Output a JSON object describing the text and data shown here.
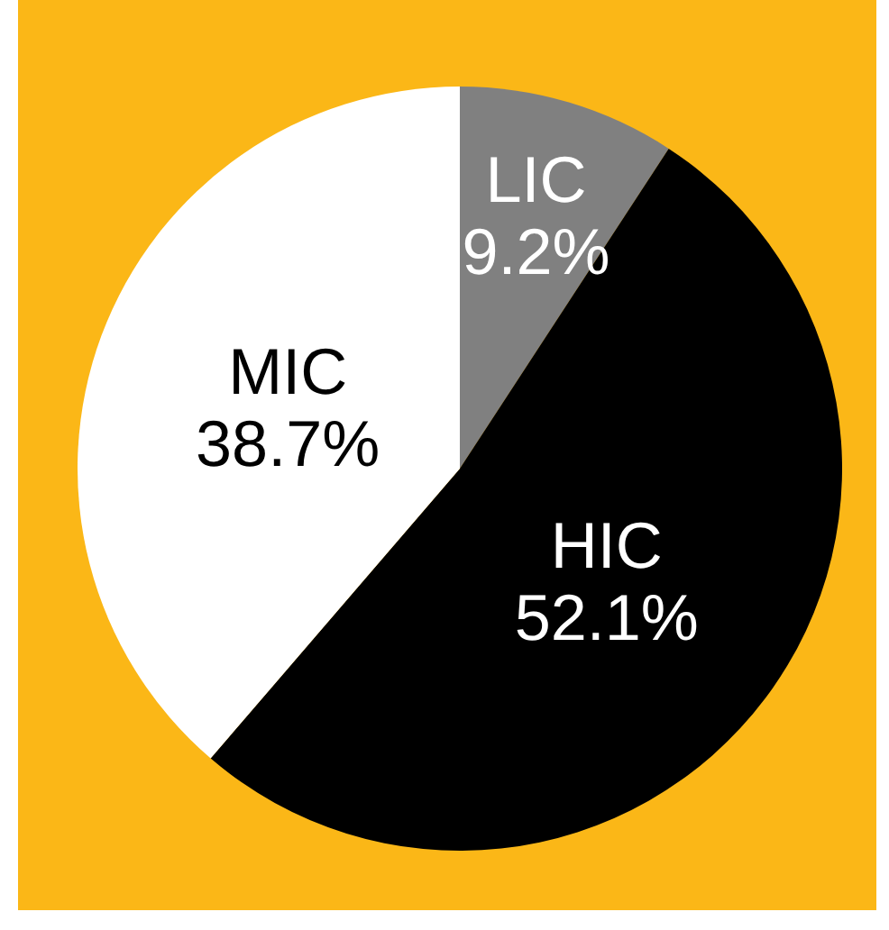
{
  "chart_data": {
    "type": "pie",
    "categories": [
      "LIC",
      "HIC",
      "MIC"
    ],
    "values": [
      9.2,
      52.1,
      38.7
    ],
    "colors": [
      "#808080",
      "#000000",
      "#ffffff"
    ],
    "value_labels": [
      "9.2%",
      "52.1%",
      "38.7%"
    ],
    "legend": false
  }
}
